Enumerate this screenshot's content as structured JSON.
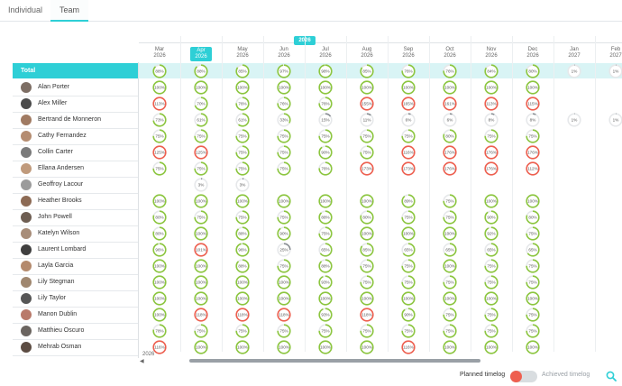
{
  "tabs": [
    {
      "label": "Individual"
    },
    {
      "label": "Team"
    }
  ],
  "year_label": "2026",
  "scroll_year": "2026",
  "months": [
    {
      "month": "Mar",
      "year": "2026"
    },
    {
      "month": "Apr",
      "year": "2026"
    },
    {
      "month": "May",
      "year": "2026"
    },
    {
      "month": "Jun",
      "year": "2026"
    },
    {
      "month": "Jul",
      "year": "2026"
    },
    {
      "month": "Aug",
      "year": "2026"
    },
    {
      "month": "Sep",
      "year": "2026"
    },
    {
      "month": "Oct",
      "year": "2026"
    },
    {
      "month": "Nov",
      "year": "2026"
    },
    {
      "month": "Dec",
      "year": "2026"
    },
    {
      "month": "Jan",
      "year": "2027"
    },
    {
      "month": "Feb",
      "year": "2027"
    }
  ],
  "current_month_index": 1,
  "total": {
    "label": "Total",
    "values": [
      "88%",
      "88%",
      "85%",
      "97%",
      "98%",
      "85%",
      "76%",
      "76%",
      "84%",
      "80%",
      "1%",
      "1%"
    ]
  },
  "people": [
    {
      "name": "Alan Porter",
      "values": [
        "100%",
        "100%",
        "100%",
        "100%",
        "100%",
        "100%",
        "100%",
        "100%",
        "100%",
        "100%",
        null,
        null
      ]
    },
    {
      "name": "Alex Miller",
      "values": [
        "113%",
        "70%",
        "76%",
        "76%",
        "76%",
        "155%",
        "165%",
        "161%",
        "113%",
        "115%",
        null,
        null
      ]
    },
    {
      "name": "Bertrand de Monneron",
      "values": [
        "73%",
        "61%",
        "61%",
        "33%",
        "15%",
        "11%",
        "6%",
        "6%",
        "8%",
        "8%",
        "1%",
        "1%"
      ]
    },
    {
      "name": "Cathy Fernandez",
      "values": [
        "75%",
        "75%",
        "75%",
        "75%",
        "75%",
        "75%",
        "75%",
        "80%",
        "75%",
        "75%",
        null,
        null
      ]
    },
    {
      "name": "Collin Carter",
      "values": [
        "125%",
        "125%",
        "75%",
        "75%",
        "90%",
        "75%",
        "116%",
        "176%",
        "176%",
        "176%",
        null,
        null
      ]
    },
    {
      "name": "Ellana Andersen",
      "values": [
        "75%",
        "75%",
        "75%",
        "75%",
        "76%",
        "173%",
        "173%",
        "176%",
        "176%",
        "112%",
        null,
        null
      ]
    },
    {
      "name": "Geoffroy Lacour",
      "values": [
        null,
        "3%",
        "3%",
        null,
        null,
        null,
        null,
        null,
        null,
        null,
        null,
        null
      ]
    },
    {
      "name": "Heather Brooks",
      "values": [
        "100%",
        "100%",
        "100%",
        "100%",
        "100%",
        "100%",
        "89%",
        "75%",
        "100%",
        "100%",
        null,
        null
      ]
    },
    {
      "name": "John Powell",
      "values": [
        "80%",
        "75%",
        "75%",
        "75%",
        "88%",
        "80%",
        "75%",
        "75%",
        "90%",
        "80%",
        null,
        null
      ]
    },
    {
      "name": "Katelyn Wilson",
      "values": [
        "80%",
        "100%",
        "88%",
        "90%",
        "75%",
        "100%",
        "100%",
        "100%",
        "92%",
        "75%",
        null,
        null
      ]
    },
    {
      "name": "Laurent Lombard",
      "values": [
        "96%",
        "101%",
        "96%",
        "25%",
        "65%",
        "85%",
        "65%",
        "65%",
        "65%",
        "65%",
        null,
        null
      ]
    },
    {
      "name": "Layla Garcia",
      "values": [
        "100%",
        "100%",
        "88%",
        "75%",
        "88%",
        "75%",
        "75%",
        "100%",
        "75%",
        "75%",
        null,
        null
      ]
    },
    {
      "name": "Lily Stegman",
      "values": [
        "100%",
        "100%",
        "100%",
        "100%",
        "93%",
        "75%",
        "75%",
        "75%",
        "75%",
        "75%",
        null,
        null
      ]
    },
    {
      "name": "Lily Taylor",
      "values": [
        "100%",
        "100%",
        "100%",
        "100%",
        "100%",
        "100%",
        "100%",
        "100%",
        "100%",
        "100%",
        null,
        null
      ]
    },
    {
      "name": "Manon Dublin",
      "values": [
        "100%",
        "118%",
        "118%",
        "118%",
        "93%",
        "118%",
        "90%",
        "75%",
        "75%",
        "75%",
        null,
        null
      ]
    },
    {
      "name": "Matthieu Oscuro",
      "values": [
        "78%",
        "75%",
        "75%",
        "75%",
        "75%",
        "75%",
        "75%",
        "75%",
        "75%",
        "75%",
        null,
        null
      ]
    },
    {
      "name": "Mehrab Osman",
      "values": [
        "116%",
        "100%",
        "100%",
        "100%",
        "100%",
        "100%",
        "116%",
        "100%",
        "100%",
        "100%",
        null,
        null
      ]
    }
  ],
  "footer": {
    "planned_label": "Planned timelog",
    "achieved_label": "Achieved timelog"
  },
  "colors": {
    "accent": "#2ecfd6",
    "ok": "#8cc63f",
    "over": "#ee5f4f",
    "under": "#8a8f94"
  }
}
